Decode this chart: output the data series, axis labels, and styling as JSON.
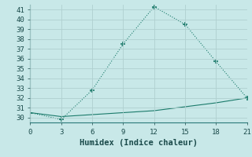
{
  "xlabel": "Humidex (Indice chaleur)",
  "x": [
    0,
    3,
    6,
    9,
    12,
    15,
    18,
    21
  ],
  "line1_y": [
    30.5,
    29.8,
    32.8,
    37.5,
    41.3,
    39.5,
    35.7,
    32.0
  ],
  "line2_y": [
    30.5,
    30.1,
    30.3,
    30.5,
    30.7,
    31.1,
    31.5,
    32.0
  ],
  "line_color": "#1a7a6a",
  "bg_color": "#c8e8e8",
  "grid_color": "#b0cfcf",
  "xlim": [
    0,
    21
  ],
  "ylim": [
    29.5,
    41.5
  ],
  "xticks": [
    0,
    3,
    6,
    9,
    12,
    15,
    18,
    21
  ],
  "yticks": [
    30,
    31,
    32,
    33,
    34,
    35,
    36,
    37,
    38,
    39,
    40,
    41
  ]
}
